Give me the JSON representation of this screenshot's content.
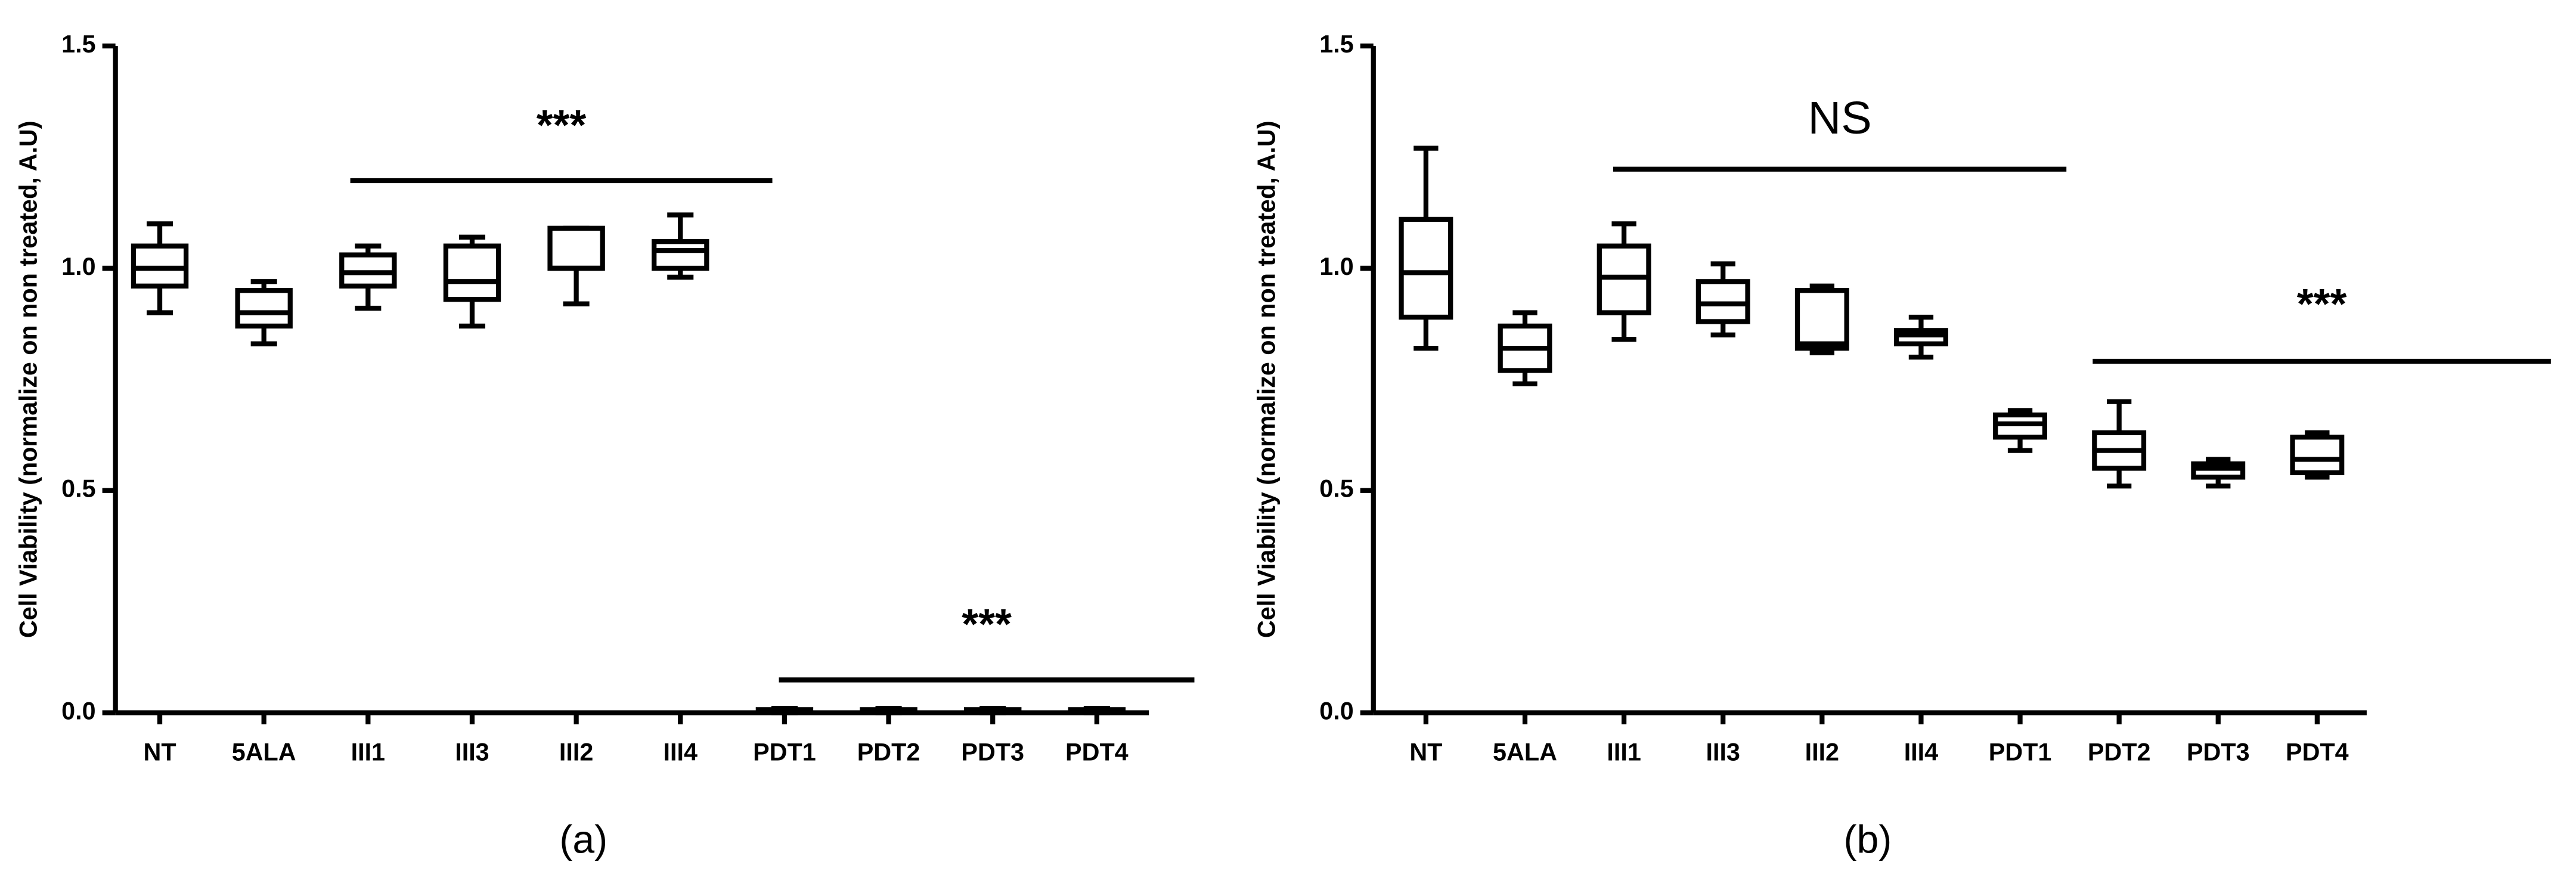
{
  "chart_data": [
    {
      "type": "box",
      "panel_label": "(a)",
      "ylabel": "Cell Viability (normalize on non treated,  A.U)",
      "categories": [
        "NT",
        "5ALA",
        "III1",
        "III3",
        "III2",
        "III4",
        "PDT1",
        "PDT2",
        "PDT3",
        "PDT4"
      ],
      "min": [
        0.9,
        0.83,
        0.91,
        0.87,
        0.92,
        0.98,
        0.0,
        0.0,
        0.0,
        0.0
      ],
      "q1": [
        0.96,
        0.87,
        0.96,
        0.93,
        1.0,
        1.0,
        0.003,
        0.003,
        0.003,
        0.003
      ],
      "median": [
        1.0,
        0.9,
        0.99,
        0.97,
        1.0,
        1.04,
        0.005,
        0.005,
        0.005,
        0.005
      ],
      "q3": [
        1.05,
        0.95,
        1.03,
        1.05,
        1.09,
        1.06,
        0.007,
        0.007,
        0.007,
        0.007
      ],
      "max": [
        1.1,
        0.97,
        1.05,
        1.07,
        1.09,
        1.12,
        0.01,
        0.01,
        0.01,
        0.01
      ],
      "color": "#000000",
      "ylim": [
        0,
        1.5
      ],
      "yticks": [
        {
          "value": 0,
          "label": "0.0"
        },
        0.5,
        {
          "value": 1,
          "label": "1.0"
        },
        1.5
      ],
      "annotations": [
        "***",
        "***"
      ]
    },
    {
      "type": "box",
      "panel_label": "(b)",
      "ylabel": "Cell Viability (normalize on non treated,  A.U)",
      "categories": [
        "NT",
        "5ALA",
        "III1",
        "III3",
        "III2",
        "III4",
        "PDT1",
        "PDT2",
        "PDT3",
        "PDT4"
      ],
      "min": [
        0.82,
        0.74,
        0.84,
        0.85,
        0.81,
        0.8,
        0.59,
        0.51,
        0.51,
        0.53
      ],
      "q1": [
        0.89,
        0.77,
        0.9,
        0.88,
        0.82,
        0.83,
        0.62,
        0.55,
        0.53,
        0.54
      ],
      "median": [
        0.99,
        0.82,
        0.98,
        0.92,
        0.83,
        0.85,
        0.65,
        0.59,
        0.55,
        0.57
      ],
      "q3": [
        1.11,
        0.87,
        1.05,
        0.97,
        0.95,
        0.86,
        0.67,
        0.63,
        0.56,
        0.62
      ],
      "max": [
        1.27,
        0.9,
        1.1,
        1.01,
        0.96,
        0.89,
        0.68,
        0.7,
        0.57,
        0.63
      ],
      "color": "#000000",
      "ylim": [
        0,
        1.5
      ],
      "yticks": [
        {
          "value": 0,
          "label": "0.0"
        },
        0.5,
        {
          "value": 1,
          "label": "1.0"
        },
        1.5
      ],
      "annotations": [
        "NS",
        "***"
      ]
    }
  ]
}
